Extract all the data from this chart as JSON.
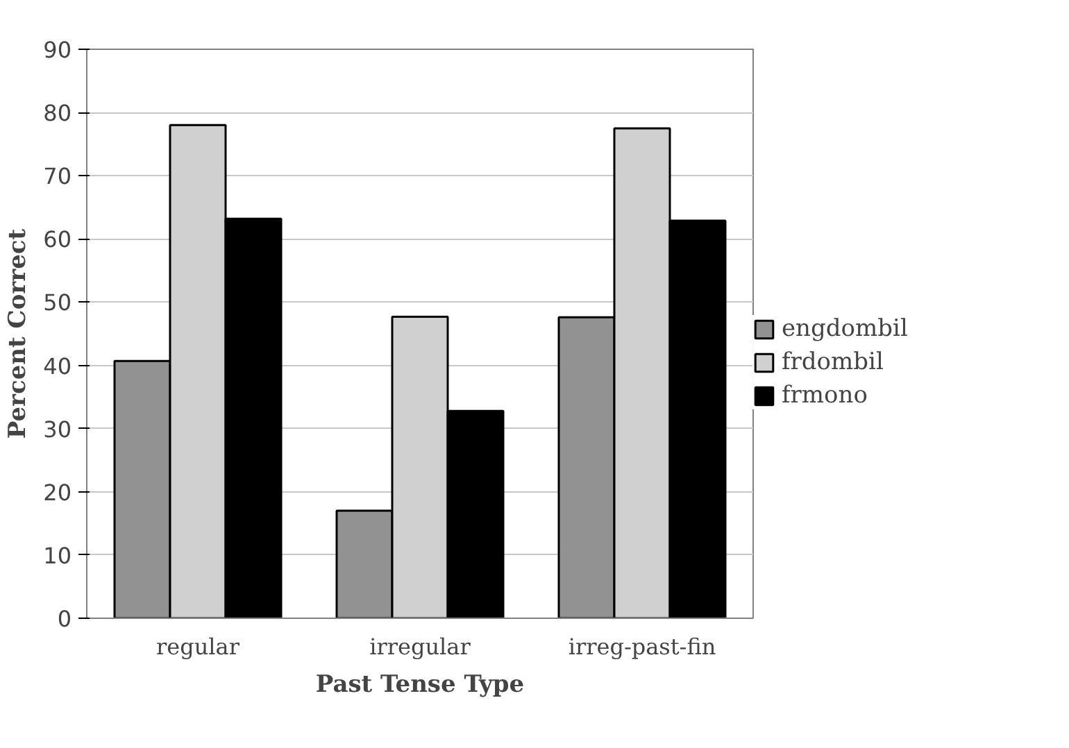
{
  "chart_data": {
    "type": "bar",
    "xlabel": "Past Tense Type",
    "ylabel": "Percent Correct",
    "categories": [
      "regular",
      "irregular",
      "irreg-past-fin"
    ],
    "series": [
      {
        "name": "engdombil",
        "color": "#929292",
        "values": [
          40.7,
          17,
          47.6
        ]
      },
      {
        "name": "frdombil",
        "color": "#d0d0d0",
        "values": [
          78,
          47.7,
          77.5
        ]
      },
      {
        "name": "frmono",
        "color": "#000000",
        "values": [
          63.2,
          32.8,
          62.9
        ]
      }
    ],
    "ylim": [
      0,
      90
    ],
    "yticks": [
      0,
      10,
      20,
      30,
      40,
      50,
      60,
      70,
      80,
      90
    ],
    "grid": "y",
    "legend": "right"
  }
}
